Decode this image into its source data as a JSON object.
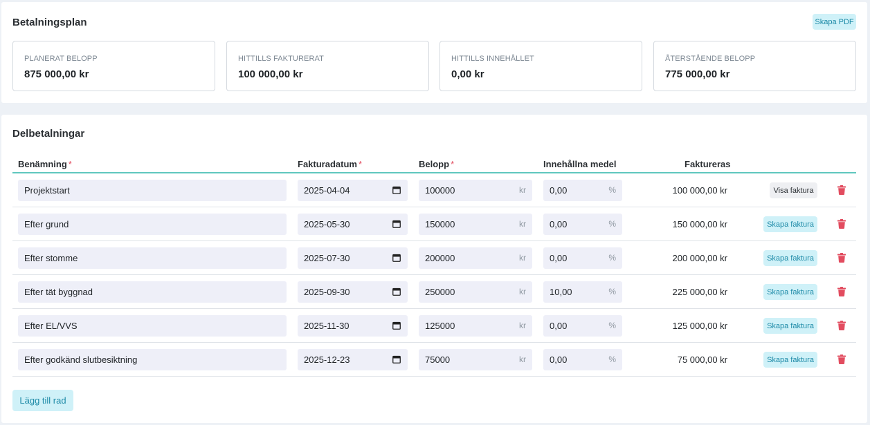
{
  "summary": {
    "title": "Betalningsplan",
    "pdf_button": "Skapa PDF",
    "stats": [
      {
        "label": "PLANERAT BELOPP",
        "value": "875 000,00 kr"
      },
      {
        "label": "HITTILLS FAKTURERAT",
        "value": "100 000,00 kr"
      },
      {
        "label": "HITTILLS INNEHÅLLET",
        "value": "0,00 kr"
      },
      {
        "label": "ÅTERSTÅENDE BELOPP",
        "value": "775 000,00 kr"
      }
    ]
  },
  "parts": {
    "title": "Delbetalningar",
    "headers": {
      "name": "Benämning",
      "date": "Fakturadatum",
      "amount": "Belopp",
      "withheld": "Innehållna medel",
      "invoiced": "Faktureras",
      "required_marker": "*"
    },
    "currency_suffix": "kr",
    "percent_suffix": "%",
    "rows": [
      {
        "name": "Projektstart",
        "date": "2025-04-04",
        "amount": "100000",
        "withheld": "0,00",
        "invoiced": "100 000,00 kr",
        "action": "Visa faktura"
      },
      {
        "name": "Efter grund",
        "date": "2025-05-30",
        "amount": "150000",
        "withheld": "0,00",
        "invoiced": "150 000,00 kr",
        "action": "Skapa faktura"
      },
      {
        "name": "Efter stomme",
        "date": "2025-07-30",
        "amount": "200000",
        "withheld": "0,00",
        "invoiced": "200 000,00 kr",
        "action": "Skapa faktura"
      },
      {
        "name": "Efter tät byggnad",
        "date": "2025-09-30",
        "amount": "250000",
        "withheld": "10,00",
        "invoiced": "225 000,00 kr",
        "action": "Skapa faktura"
      },
      {
        "name": "Efter EL/VVS",
        "date": "2025-11-30",
        "amount": "125000",
        "withheld": "0,00",
        "invoiced": "125 000,00 kr",
        "action": "Skapa faktura"
      },
      {
        "name": "Efter godkänd slutbesiktning",
        "date": "2025-12-23",
        "amount": "75000",
        "withheld": "0,00",
        "invoiced": "75 000,00 kr",
        "action": "Skapa faktura"
      }
    ],
    "add_row_button": "Lägg till rad"
  },
  "colors": {
    "accent_info": "#1d8aa7",
    "danger": "#e24c5f",
    "header_rule": "#5fc7be"
  }
}
